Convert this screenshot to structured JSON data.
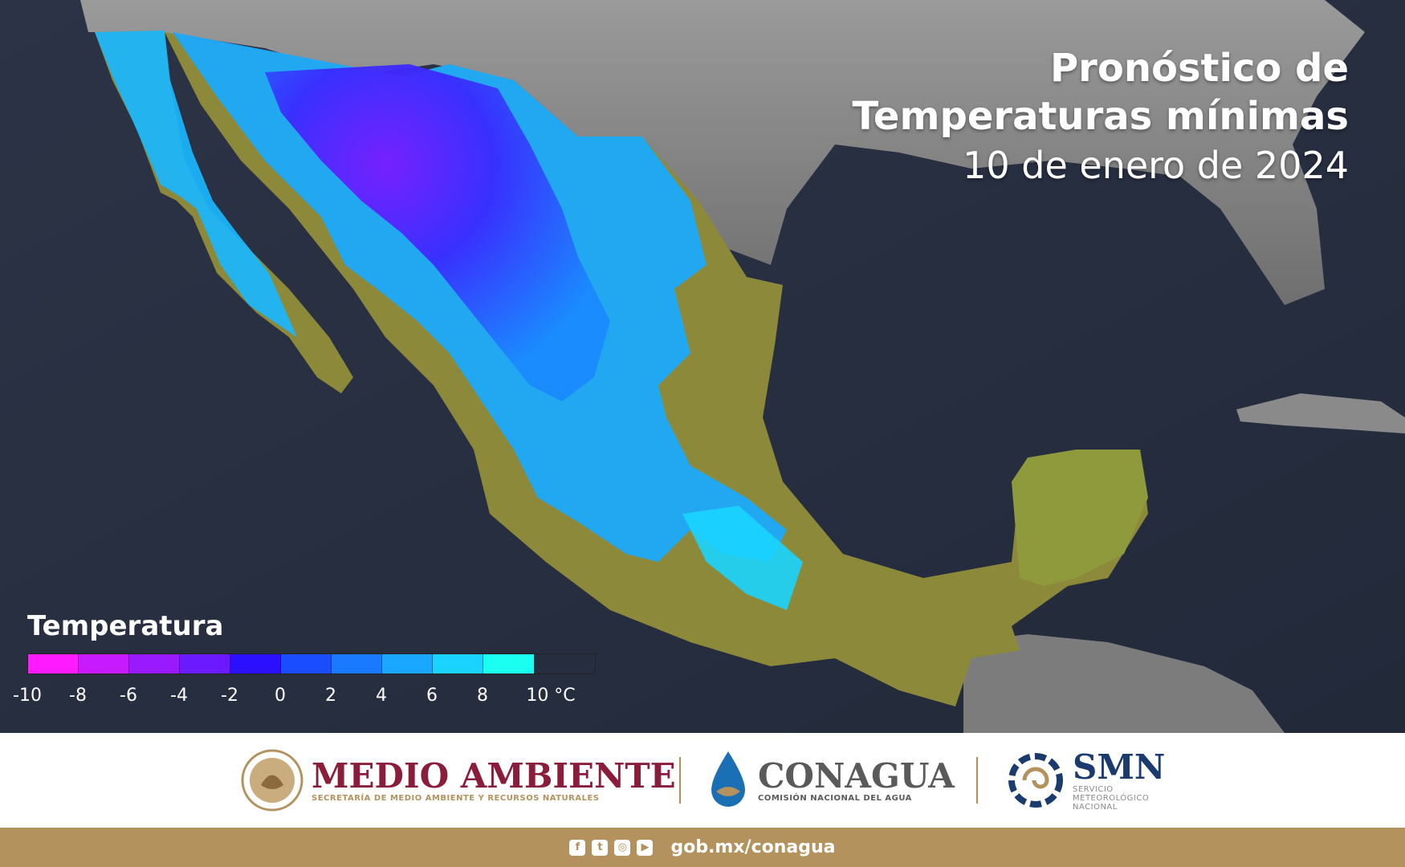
{
  "title": {
    "line1": "Pronóstico de",
    "line2": "Temperaturas mínimas",
    "date": "10 de enero de 2024"
  },
  "legend": {
    "title": "Temperatura",
    "colors": [
      "#ff1aff",
      "#c81aff",
      "#9a1aff",
      "#6b1aff",
      "#2a10ff",
      "#1a4dff",
      "#1a7aff",
      "#1aa7ff",
      "#1ad4ff",
      "#1afff0"
    ],
    "ticks": [
      "-10",
      "-8",
      "-6",
      "-4",
      "-2",
      "0",
      "2",
      "4",
      "6",
      "8",
      "10 °C"
    ]
  },
  "footer": {
    "medio_ambiente": {
      "name": "MEDIO AMBIENTE",
      "sub": "SECRETARÍA DE MEDIO AMBIENTE Y RECURSOS NATURALES",
      "color": "#8a1c3c"
    },
    "conagua": {
      "name": "CONAGUA",
      "sub": "COMISIÓN NACIONAL DEL AGUA",
      "color": "#5a5a5a"
    },
    "smn": {
      "name": "SMN",
      "sub1": "SERVICIO",
      "sub2": "METEOROLÓGICO",
      "sub3": "NACIONAL",
      "color": "#1b3b6f"
    }
  },
  "bottom_bar": {
    "icons": [
      "facebook-icon",
      "twitter-icon",
      "instagram-icon",
      "youtube-icon"
    ],
    "url": "gob.mx/conagua"
  }
}
